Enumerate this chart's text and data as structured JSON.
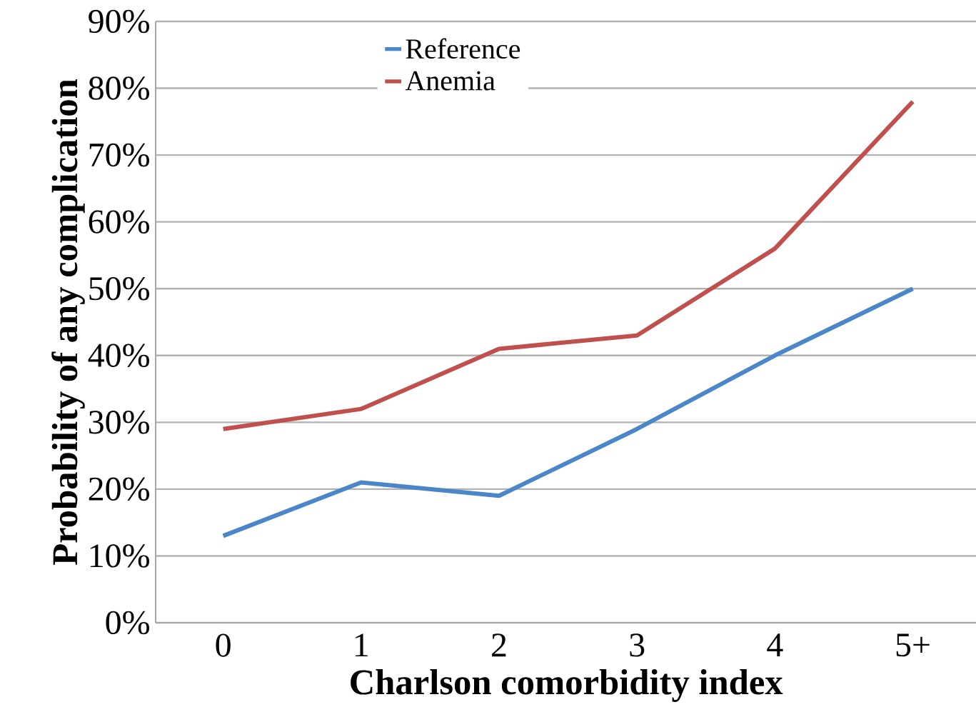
{
  "chart_data": {
    "type": "line",
    "xlabel": "Charlson comorbidity index",
    "ylabel": "Probability of any complication",
    "categories": [
      "0",
      "1",
      "2",
      "3",
      "4",
      "5+"
    ],
    "series": [
      {
        "name": "Reference",
        "color": "#4a86c8",
        "values": [
          13,
          21,
          19,
          29,
          40,
          50
        ]
      },
      {
        "name": "Anemia",
        "color": "#c0504d",
        "values": [
          29,
          32,
          41,
          43,
          56,
          78
        ]
      }
    ],
    "ylim": [
      0,
      90
    ],
    "yticks": [
      {
        "value": 0,
        "label": "0%"
      },
      {
        "value": 10,
        "label": "10%"
      },
      {
        "value": 20,
        "label": "20%"
      },
      {
        "value": 30,
        "label": "30%"
      },
      {
        "value": 40,
        "label": "40%"
      },
      {
        "value": 50,
        "label": "50%"
      },
      {
        "value": 60,
        "label": "60%"
      },
      {
        "value": 70,
        "label": "70%"
      },
      {
        "value": 80,
        "label": "80%"
      },
      {
        "value": 90,
        "label": "90%"
      }
    ],
    "grid": "y",
    "legend": "top",
    "marker": "none",
    "line_style": "solid"
  }
}
